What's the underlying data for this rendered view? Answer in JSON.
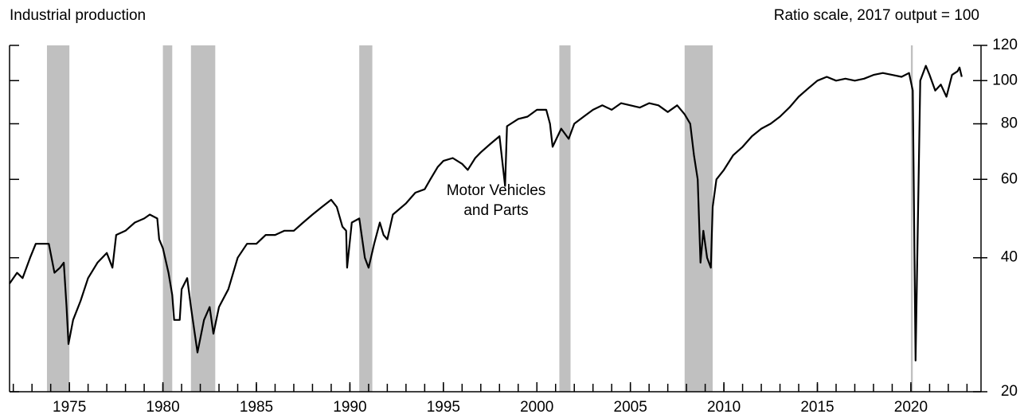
{
  "chart_data": {
    "type": "line",
    "title": "Industrial production",
    "subtitle": "Ratio scale, 2017 output = 100",
    "annotation": [
      "Motor Vehicles",
      "and Parts"
    ],
    "log_scale": true,
    "color": "#000000",
    "recession_color": "#c0c0c0",
    "xlim": [
      1971.8,
      2023.75
    ],
    "ylim": [
      20,
      120
    ],
    "yticks": [
      20,
      40,
      60,
      80,
      100,
      120
    ],
    "xticks": [
      1975,
      1980,
      1985,
      1990,
      1995,
      2000,
      2005,
      2010,
      2015,
      2020
    ],
    "xminor": [
      1972,
      1973,
      1974,
      1975,
      1976,
      1977,
      1978,
      1979,
      1980,
      1981,
      1982,
      1983,
      1984,
      1985,
      1986,
      1987,
      1988,
      1989,
      1990,
      1991,
      1992,
      1993,
      1994,
      1995,
      1996,
      1997,
      1998,
      1999,
      2000,
      2001,
      2002,
      2003,
      2004,
      2005,
      2006,
      2007,
      2008,
      2009,
      2010,
      2011,
      2012,
      2013,
      2014,
      2015,
      2016,
      2017,
      2018,
      2019,
      2020,
      2021,
      2022,
      2023
    ],
    "recessions": [
      [
        1973.8,
        1975.0
      ],
      [
        1980.0,
        1980.5
      ],
      [
        1981.5,
        1982.8
      ],
      [
        1990.5,
        1991.2
      ],
      [
        2001.2,
        2001.8
      ],
      [
        2007.9,
        2009.4
      ],
      [
        2020.0,
        2020.1
      ]
    ],
    "x": [
      1971.8,
      1972.2,
      1972.5,
      1972.9,
      1973.2,
      1973.6,
      1973.9,
      1974.2,
      1974.5,
      1974.7,
      1974.85,
      1974.95,
      1975.2,
      1975.6,
      1976,
      1976.5,
      1977,
      1977.3,
      1977.5,
      1978,
      1978.5,
      1979,
      1979.3,
      1979.7,
      1979.8,
      1980.0,
      1980.3,
      1980.5,
      1980.6,
      1980.9,
      1981.0,
      1981.3,
      1981.5,
      1981.85,
      1982.2,
      1982.5,
      1982.7,
      1983.0,
      1983.5,
      1984,
      1984.5,
      1985,
      1985.5,
      1986,
      1986.5,
      1987,
      1987.5,
      1988,
      1988.5,
      1989,
      1989.3,
      1989.6,
      1989.8,
      1989.85,
      1990.1,
      1990.5,
      1990.8,
      1991.0,
      1991.3,
      1991.6,
      1991.8,
      1992.0,
      1992.3,
      1993,
      1993.5,
      1994,
      1994.3,
      1994.7,
      1995,
      1995.5,
      1996,
      1996.3,
      1996.7,
      1997,
      1997.5,
      1998,
      1998.3,
      1998.4,
      1999,
      1999.5,
      2000,
      2000.5,
      2000.7,
      2000.84,
      2001.3,
      2001.7,
      2002,
      2002.5,
      2003,
      2003.5,
      2004,
      2004.5,
      2005,
      2005.5,
      2006,
      2006.5,
      2007,
      2007.5,
      2007.9,
      2008.2,
      2008.4,
      2008.6,
      2008.75,
      2008.9,
      2009.1,
      2009.3,
      2009.4,
      2009.6,
      2010,
      2010.5,
      2011,
      2011.5,
      2012,
      2012.5,
      2013,
      2013.5,
      2014,
      2014.5,
      2015,
      2015.5,
      2016,
      2016.5,
      2017,
      2017.5,
      2018,
      2018.5,
      2019,
      2019.5,
      2019.9,
      2020.1,
      2020.25,
      2020.5,
      2020.8,
      2021,
      2021.3,
      2021.6,
      2021.9,
      2022.2,
      2022.5,
      2022.6,
      2022.72
    ],
    "values": [
      35,
      37,
      36,
      40,
      43,
      43,
      43,
      37,
      38,
      39,
      31,
      25.6,
      29,
      32,
      36,
      39,
      41,
      38,
      45,
      46,
      48,
      49,
      50,
      49,
      44,
      42,
      37,
      33,
      29,
      29,
      34,
      36,
      31,
      24.5,
      29,
      31,
      27,
      31,
      34,
      40,
      43,
      43,
      45,
      45,
      46,
      46,
      48,
      50,
      52,
      54,
      52,
      47,
      46,
      38,
      48,
      49,
      40,
      38,
      43,
      48,
      45,
      44,
      50,
      53,
      56,
      57,
      60,
      64,
      66,
      67,
      65,
      63,
      67,
      69,
      72,
      75,
      58,
      79,
      82,
      83,
      86,
      86,
      80,
      71,
      78,
      74,
      80,
      83,
      86,
      88,
      86,
      89,
      88,
      87,
      89,
      88,
      85,
      88,
      84,
      80,
      68,
      60,
      39,
      46,
      40,
      38,
      52,
      60,
      63,
      68,
      71,
      75,
      78,
      80,
      83,
      87,
      92,
      96,
      100,
      102,
      100,
      101,
      100,
      101,
      103,
      104,
      103,
      102,
      104,
      95,
      23.5,
      100,
      108,
      103,
      95,
      98,
      92,
      103,
      105,
      107,
      102
    ]
  }
}
